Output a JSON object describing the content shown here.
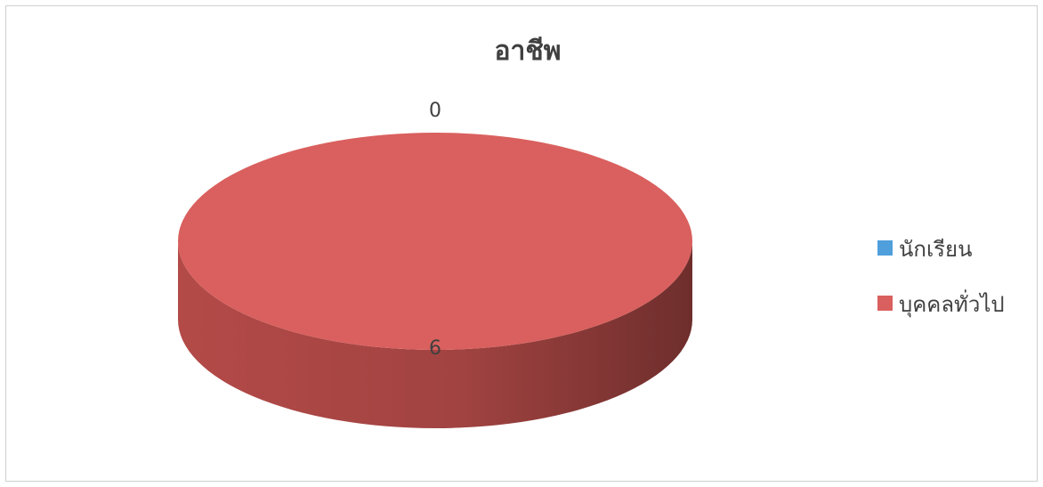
{
  "chart_data": {
    "type": "pie",
    "title": "อาชีพ",
    "categories": [
      "นักเรียน",
      "บุคคลทั่วไป"
    ],
    "values": [
      0,
      6
    ],
    "colors": [
      "#4f9fdc",
      "#d9605e"
    ],
    "legend_position": "right",
    "three_d": true
  }
}
